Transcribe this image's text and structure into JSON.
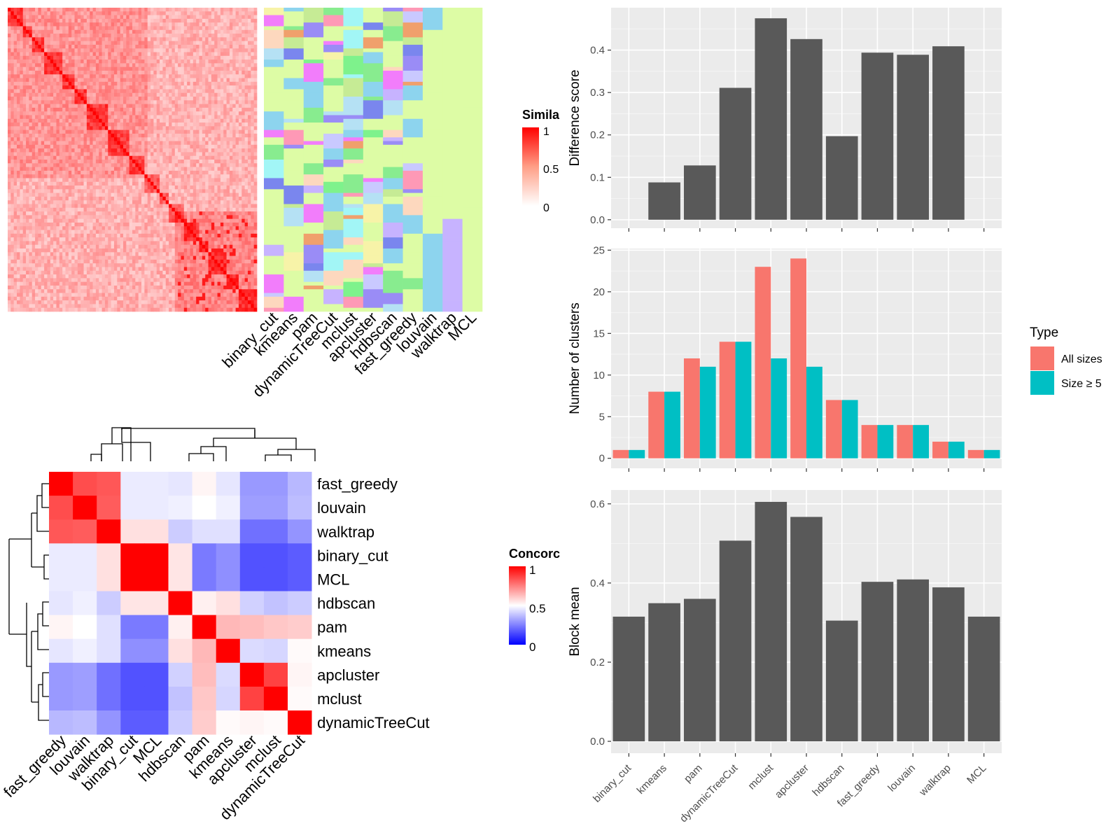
{
  "colors": {
    "panel_bg": "#EBEBEB",
    "grid": "#FFFFFF",
    "bar": "#595959",
    "all_sizes": "#F8766D",
    "size_ge5": "#00BFC4",
    "heat_red": "#FF0000",
    "heat_blue": "#0000FF",
    "heat_white": "#FFFFFF",
    "annotation_palette": [
      "#DDFCA5",
      "#A2F6F6",
      "#C9C9FF",
      "#88EC8F",
      "#FDD8BE",
      "#FE99B6",
      "#9A8CF6",
      "#F0A06C",
      "#7EF28C",
      "#C6EB95",
      "#8DD4EE",
      "#F27DFB",
      "#B5E1F4",
      "#F7F3A8",
      "#C7B3FF",
      "#7A86EE"
    ]
  },
  "similarity_heatmap": {
    "legend_title": "Simila",
    "legend_ticks": [
      "1",
      "0.5",
      "0"
    ],
    "n_items": 82
  },
  "annotation_columns": [
    "binary_cut",
    "kmeans",
    "pam",
    "dynamicTreeCut",
    "mclust",
    "apcluster",
    "hdbscan",
    "fast_greedy",
    "louvain",
    "walktrap",
    "MCL"
  ],
  "chart_data": [
    {
      "type": "bar",
      "categories": [
        "binary_cut",
        "kmeans",
        "pam",
        "dynamicTreeCut",
        "mclust",
        "apcluster",
        "hdbscan",
        "fast_greedy",
        "louvain",
        "walktrap",
        "MCL"
      ],
      "values": [
        0.0,
        0.088,
        0.128,
        0.311,
        0.475,
        0.426,
        0.197,
        0.394,
        0.389,
        0.409,
        0.0
      ],
      "title": "",
      "xlabel": "",
      "ylabel": "Difference score",
      "ylim": [
        -0.02,
        0.5
      ],
      "yticks": [
        "0.0",
        "0.1",
        "0.2",
        "0.3",
        "0.4"
      ],
      "grid": true
    },
    {
      "type": "bar",
      "categories": [
        "binary_cut",
        "kmeans",
        "pam",
        "dynamicTreeCut",
        "mclust",
        "apcluster",
        "hdbscan",
        "fast_greedy",
        "louvain",
        "walktrap",
        "MCL"
      ],
      "series": [
        {
          "name": "All sizes",
          "values": [
            1,
            8,
            12,
            14,
            23,
            24,
            7,
            4,
            4,
            2,
            1
          ]
        },
        {
          "name": "Size ≥ 5",
          "values": [
            1,
            8,
            11,
            14,
            12,
            11,
            7,
            4,
            4,
            2,
            1
          ]
        }
      ],
      "title": "",
      "xlabel": "",
      "ylabel": "Number of clusters",
      "ylim": [
        -1.2,
        25.2
      ],
      "yticks": [
        "0",
        "5",
        "10",
        "15",
        "20",
        "25"
      ],
      "legend_title": "Type",
      "legend_position": "right",
      "grid": true
    },
    {
      "type": "bar",
      "categories": [
        "binary_cut",
        "kmeans",
        "pam",
        "dynamicTreeCut",
        "mclust",
        "apcluster",
        "hdbscan",
        "fast_greedy",
        "louvain",
        "walktrap",
        "MCL"
      ],
      "values": [
        0.315,
        0.349,
        0.36,
        0.507,
        0.605,
        0.567,
        0.305,
        0.403,
        0.409,
        0.389,
        0.315
      ],
      "title": "",
      "xlabel": "",
      "ylabel": "Block mean",
      "ylim": [
        -0.03,
        0.635
      ],
      "yticks": [
        "0.0",
        "0.2",
        "0.4",
        "0.6"
      ],
      "grid": true
    },
    {
      "type": "heatmap",
      "legend_title": "Concorc",
      "legend_ticks": [
        "1",
        "0.5",
        "0"
      ],
      "rows": [
        "fast_greedy",
        "louvain",
        "walktrap",
        "binary_cut",
        "MCL",
        "hdbscan",
        "pam",
        "kmeans",
        "apcluster",
        "mclust",
        "dynamicTreeCut"
      ],
      "columns": [
        "fast_greedy",
        "louvain",
        "walktrap",
        "binary_cut",
        "MCL",
        "hdbscan",
        "pam",
        "kmeans",
        "apcluster",
        "mclust",
        "dynamicTreeCut"
      ],
      "values": [
        [
          1.0,
          0.85,
          0.83,
          0.46,
          0.46,
          0.45,
          0.52,
          0.45,
          0.3,
          0.3,
          0.36
        ],
        [
          0.85,
          1.0,
          0.82,
          0.46,
          0.46,
          0.47,
          0.5,
          0.47,
          0.31,
          0.31,
          0.37
        ],
        [
          0.83,
          0.82,
          1.0,
          0.56,
          0.56,
          0.4,
          0.44,
          0.44,
          0.22,
          0.22,
          0.29
        ],
        [
          0.46,
          0.46,
          0.56,
          1.0,
          1.0,
          0.55,
          0.24,
          0.28,
          0.16,
          0.16,
          0.18
        ],
        [
          0.46,
          0.46,
          0.56,
          1.0,
          1.0,
          0.55,
          0.24,
          0.28,
          0.16,
          0.16,
          0.18
        ],
        [
          0.45,
          0.47,
          0.4,
          0.55,
          0.55,
          1.0,
          0.53,
          0.56,
          0.41,
          0.38,
          0.4
        ],
        [
          0.52,
          0.5,
          0.44,
          0.24,
          0.24,
          0.53,
          1.0,
          0.64,
          0.63,
          0.61,
          0.6
        ],
        [
          0.45,
          0.47,
          0.44,
          0.28,
          0.28,
          0.56,
          0.64,
          1.0,
          0.43,
          0.42,
          0.51
        ],
        [
          0.3,
          0.31,
          0.22,
          0.16,
          0.16,
          0.41,
          0.63,
          0.43,
          1.0,
          0.87,
          0.52
        ],
        [
          0.3,
          0.31,
          0.22,
          0.16,
          0.16,
          0.38,
          0.61,
          0.42,
          0.87,
          1.0,
          0.51
        ],
        [
          0.36,
          0.37,
          0.29,
          0.18,
          0.18,
          0.4,
          0.6,
          0.51,
          0.52,
          0.51,
          1.0
        ]
      ]
    }
  ]
}
